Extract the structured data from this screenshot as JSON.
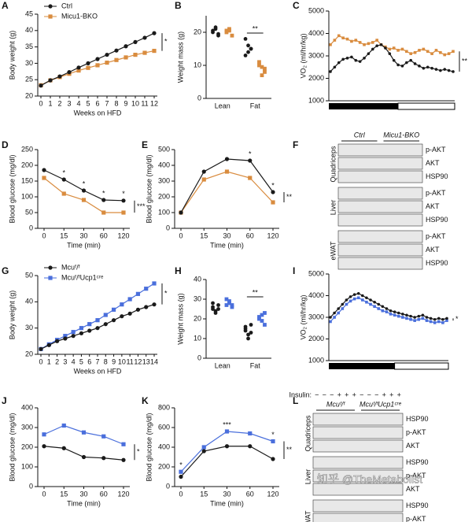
{
  "chart_data": [
    {
      "type": "line",
      "label": "A",
      "ylabel": "Body weight (g)",
      "xlabel": "Weeks on HFD",
      "x": [
        0,
        1,
        2,
        3,
        4,
        5,
        6,
        7,
        8,
        9,
        10,
        11,
        12
      ],
      "xlim": [
        0,
        12
      ],
      "xticks": [
        0,
        1,
        2,
        3,
        4,
        5,
        6,
        7,
        8,
        9,
        10,
        11,
        12
      ],
      "ylim": [
        20,
        45
      ],
      "yticks": [
        20,
        25,
        30,
        35,
        40,
        45
      ],
      "legend": "upper left",
      "significance": "*",
      "series": [
        {
          "name": "Ctrl",
          "color": "#1a1a1a",
          "marker": "circle",
          "values": [
            23.2,
            24.8,
            26,
            27.3,
            28.7,
            30,
            31.3,
            32.6,
            33.9,
            35.2,
            36.5,
            37.8,
            39.2
          ]
        },
        {
          "name": "Micu1-BKO",
          "color": "#d98c3f",
          "marker": "square",
          "values": [
            23.3,
            24.8,
            25.8,
            26.8,
            27.8,
            28.6,
            29.4,
            30.2,
            31,
            31.8,
            32.6,
            33.2,
            33.8
          ]
        }
      ]
    },
    {
      "type": "dot",
      "label": "B",
      "ylabel": "Weight mass (g)",
      "categories": [
        "Lean",
        "Fat"
      ],
      "ylim": [
        0,
        25
      ],
      "yticks": [
        0,
        10,
        20
      ],
      "significance": "**",
      "series": [
        {
          "color": "#1a1a1a",
          "marker": "circle",
          "values": [
            [
              20.5,
              21,
              19,
              20,
              21.5,
              19.5
            ],
            [
              18,
              16,
              15,
              13,
              14,
              15
            ]
          ]
        },
        {
          "color": "#d98c3f",
          "marker": "square",
          "values": [
            [
              20,
              20.5,
              19,
              20.5,
              21
            ],
            [
              11,
              9.5,
              8,
              10,
              7,
              9
            ]
          ]
        }
      ]
    },
    {
      "type": "line",
      "label": "C",
      "ylabel": "VO₂ (ml/hr/kg)",
      "light_dark": true,
      "categories": [
        null,
        null,
        null,
        null,
        null,
        null,
        null,
        null,
        null,
        null,
        null,
        null,
        null,
        null,
        null,
        null,
        null,
        null,
        null,
        null,
        null,
        null,
        null,
        null,
        null,
        null,
        null,
        null,
        null,
        null
      ],
      "ylim": [
        1000,
        5000
      ],
      "yticks": [
        1000,
        2000,
        3000,
        4000,
        5000
      ],
      "significance": "**",
      "series": [
        {
          "color": "#1a1a1a",
          "marker": "circle",
          "values": [
            2300,
            2500,
            2700,
            2850,
            2900,
            2950,
            2800,
            2750,
            2900,
            3100,
            3300,
            3450,
            3500,
            3350,
            3100,
            2800,
            2600,
            2550,
            2700,
            2800,
            2650,
            2550,
            2450,
            2500,
            2450,
            2400,
            2350,
            2400,
            2350,
            2300
          ]
        },
        {
          "color": "#d98c3f",
          "marker": "square",
          "values": [
            3500,
            3700,
            3900,
            3800,
            3750,
            3650,
            3700,
            3600,
            3500,
            3550,
            3600,
            3700,
            3500,
            3400,
            3300,
            3350,
            3250,
            3300,
            3200,
            3100,
            3150,
            3250,
            3300,
            3200,
            3100,
            3250,
            3150,
            3050,
            3100,
            3200
          ]
        }
      ]
    },
    {
      "type": "line",
      "label": "D",
      "ylabel": "Blood glucose (mg/dl)",
      "xlabel": "Time (min)",
      "categories": [
        "0",
        "15",
        "30",
        "60",
        "120"
      ],
      "ylim": [
        0,
        250
      ],
      "yticks": [
        0,
        50,
        100,
        150,
        200,
        250
      ],
      "significance": "***",
      "series": [
        {
          "color": "#1a1a1a",
          "marker": "circle",
          "values": [
            185,
            155,
            120,
            90,
            88
          ],
          "point_labels": [
            null,
            "*",
            "*",
            "*",
            "*"
          ]
        },
        {
          "color": "#d98c3f",
          "marker": "square",
          "values": [
            160,
            110,
            90,
            50,
            50
          ]
        }
      ]
    },
    {
      "type": "line",
      "label": "E",
      "ylabel": "Blood glucose (mg/dl)",
      "xlabel": "Time (min)",
      "categories": [
        "0",
        "15",
        "30",
        "60",
        "120"
      ],
      "ylim": [
        0,
        500
      ],
      "yticks": [
        0,
        100,
        200,
        300,
        400,
        500
      ],
      "significance": "**",
      "series": [
        {
          "color": "#1a1a1a",
          "marker": "circle",
          "values": [
            100,
            360,
            440,
            430,
            230
          ],
          "point_labels": [
            null,
            null,
            null,
            "*",
            "*"
          ]
        },
        {
          "color": "#d98c3f",
          "marker": "square",
          "values": [
            100,
            310,
            360,
            320,
            165
          ]
        }
      ]
    },
    {
      "type": "line",
      "label": "G",
      "ylabel": "Body weight (g)",
      "xlabel": "Weeks on HFD",
      "x": [
        0,
        1,
        2,
        3,
        4,
        5,
        6,
        7,
        8,
        9,
        10,
        11,
        12,
        13,
        14
      ],
      "xlim": [
        0,
        14
      ],
      "xticks": [
        0,
        1,
        2,
        3,
        4,
        5,
        6,
        7,
        8,
        9,
        10,
        11,
        12,
        13,
        14
      ],
      "ylim": [
        20,
        50
      ],
      "yticks": [
        20,
        30,
        40,
        50
      ],
      "legend": "upper left",
      "significance": "*",
      "series": [
        {
          "name": "Mcuᶠ/ᶠ",
          "color": "#1a1a1a",
          "marker": "circle",
          "values": [
            22,
            23.5,
            25,
            26,
            27,
            28,
            29,
            30,
            31.5,
            33,
            34.5,
            35.5,
            37,
            38,
            39
          ]
        },
        {
          "name": "Mcuᶠ/ᶠUcp1ᶜʳᵉ",
          "color": "#4a6fdc",
          "marker": "square",
          "values": [
            22,
            23.8,
            25.5,
            27,
            28.5,
            30,
            31.5,
            33,
            35,
            37,
            39,
            41,
            43,
            45,
            47
          ]
        }
      ]
    },
    {
      "type": "dot",
      "label": "H",
      "ylabel": "Weight mass (g)",
      "categories": [
        "Lean",
        "Fat"
      ],
      "ylim": [
        0,
        40
      ],
      "yticks": [
        0,
        10,
        20,
        30,
        40
      ],
      "significance": "**",
      "series": [
        {
          "color": "#1a1a1a",
          "marker": "circle",
          "values": [
            [
              25,
              24,
              27,
              26,
              23,
              25,
              28
            ],
            [
              15,
              12,
              17,
              14,
              10,
              13,
              16
            ]
          ]
        },
        {
          "color": "#4a6fdc",
          "marker": "square",
          "values": [
            [
              27,
              29,
              26,
              30,
              28,
              27
            ],
            [
              20,
              22,
              17,
              21,
              19,
              23
            ]
          ]
        }
      ]
    },
    {
      "type": "line",
      "label": "I",
      "ylabel": "VO₂ (ml/hr/kg)",
      "light_dark": true,
      "categories": [
        null,
        null,
        null,
        null,
        null,
        null,
        null,
        null,
        null,
        null,
        null,
        null,
        null,
        null,
        null,
        null,
        null,
        null,
        null,
        null,
        null,
        null,
        null,
        null,
        null,
        null,
        null,
        null,
        null,
        null
      ],
      "ylim": [
        1000,
        5000
      ],
      "yticks": [
        1000,
        2000,
        3000,
        4000,
        5000
      ],
      "significance": "*",
      "series": [
        {
          "color": "#1a1a1a",
          "marker": "circle",
          "values": [
            3000,
            3200,
            3400,
            3600,
            3800,
            3950,
            4050,
            4100,
            4000,
            3900,
            3800,
            3700,
            3600,
            3500,
            3400,
            3300,
            3250,
            3200,
            3150,
            3100,
            3050,
            3000,
            3050,
            3100,
            3000,
            2950,
            2900,
            2950,
            2900,
            2950
          ]
        },
        {
          "color": "#4a6fdc",
          "marker": "square",
          "values": [
            2800,
            3000,
            3200,
            3400,
            3600,
            3750,
            3850,
            3900,
            3800,
            3700,
            3600,
            3500,
            3400,
            3300,
            3250,
            3150,
            3100,
            3050,
            3000,
            2950,
            2900,
            2850,
            2900,
            2950,
            2850,
            2800,
            2750,
            2800,
            2750,
            2850
          ]
        }
      ]
    },
    {
      "type": "line",
      "label": "J",
      "ylabel": "Blood glucose (mg/dl)",
      "xlabel": "Time (min)",
      "categories": [
        "0",
        "15",
        "30",
        "60",
        "120"
      ],
      "ylim": [
        0,
        400
      ],
      "yticks": [
        0,
        100,
        200,
        300,
        400
      ],
      "significance": "*",
      "series": [
        {
          "color": "#1a1a1a",
          "marker": "circle",
          "values": [
            205,
            195,
            150,
            145,
            135
          ]
        },
        {
          "color": "#4a6fdc",
          "marker": "square",
          "values": [
            265,
            310,
            275,
            255,
            215
          ]
        }
      ]
    },
    {
      "type": "line",
      "label": "K",
      "ylabel": "Blood glucose (mg/dl)",
      "xlabel": "Time (min)",
      "categories": [
        "0",
        "15",
        "30",
        "60",
        "120"
      ],
      "ylim": [
        0,
        800
      ],
      "yticks": [
        0,
        200,
        400,
        600,
        800
      ],
      "significance": "**",
      "series": [
        {
          "color": "#1a1a1a",
          "marker": "circle",
          "values": [
            100,
            360,
            410,
            410,
            280
          ]
        },
        {
          "color": "#4a6fdc",
          "marker": "square",
          "values": [
            150,
            400,
            560,
            540,
            460
          ],
          "point_labels": [
            "*",
            null,
            "***",
            null,
            "*"
          ]
        }
      ]
    }
  ],
  "blots": [
    {
      "label": "F",
      "groups": [
        "Ctrl",
        "Micu1-BKO"
      ],
      "tissues": [
        {
          "name": "Quadriceps",
          "rows": [
            "p-AKT",
            "AKT",
            "HSP90"
          ]
        },
        {
          "name": "Liver",
          "rows": [
            "p-AKT",
            "AKT",
            "HSP90"
          ]
        },
        {
          "name": "eWAT",
          "rows": [
            "p-AKT",
            "AKT",
            "HSP90"
          ]
        }
      ]
    },
    {
      "label": "L",
      "treatment_label": "Insulin:",
      "treatment": [
        "−",
        "−",
        "−",
        "+",
        "+",
        "+",
        "−",
        "−",
        "−",
        "+",
        "+",
        "+"
      ],
      "groups": [
        "Mcuᶠ/ᶠ",
        "Mcuᶠ/ᶠUcp1ᶜʳᵉ"
      ],
      "tissues": [
        {
          "name": "Quadriceps",
          "rows": [
            "HSP90",
            "p-AKT",
            "AKT"
          ]
        },
        {
          "name": "Liver",
          "rows": [
            "HSP90",
            "p-AKT",
            "AKT"
          ]
        },
        {
          "name": "eWAT",
          "rows": [
            "HSP90",
            "p-AKT",
            "AKT"
          ]
        }
      ]
    }
  ],
  "watermark": "知乎 @TheMetabolist"
}
